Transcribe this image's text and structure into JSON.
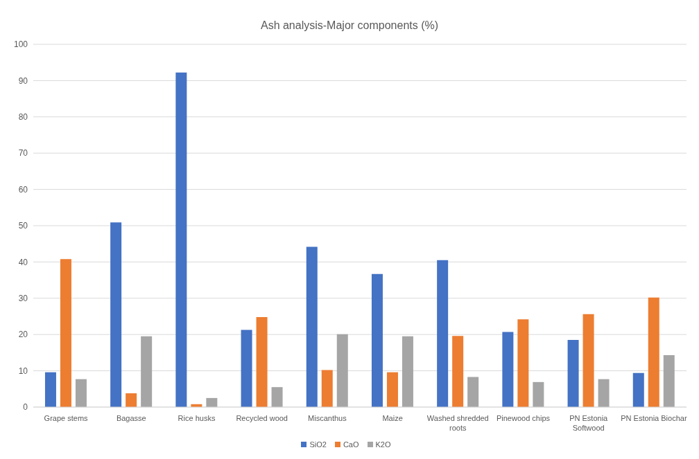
{
  "chart_data": {
    "type": "bar",
    "title": "Ash analysis-Major components (%)",
    "categories": [
      "Grape stems",
      "Bagasse",
      "Rice husks",
      "Recycled wood",
      "Miscanthus",
      "Maize",
      "Washed shredded roots",
      "Pinewood chips",
      "PN Estonia Softwood",
      "PN Estonia Biochar"
    ],
    "series": [
      {
        "name": "SiO2",
        "color": "#4472c4",
        "values": [
          9.6,
          50.9,
          92.2,
          21.3,
          44.2,
          36.7,
          40.5,
          20.7,
          18.5,
          9.4
        ]
      },
      {
        "name": "CaO",
        "color": "#ed7d31",
        "values": [
          40.8,
          3.8,
          0.8,
          24.8,
          10.2,
          9.6,
          19.6,
          24.2,
          25.6,
          30.2
        ]
      },
      {
        "name": "K2O",
        "color": "#a5a5a5",
        "values": [
          7.7,
          19.5,
          2.5,
          5.5,
          20.1,
          19.5,
          8.3,
          6.9,
          7.7,
          14.3
        ]
      }
    ],
    "ylim": [
      0,
      100
    ],
    "yticks": [
      0,
      10,
      20,
      30,
      40,
      50,
      60,
      70,
      80,
      90,
      100
    ],
    "grid": "y",
    "legend": "bottom"
  }
}
